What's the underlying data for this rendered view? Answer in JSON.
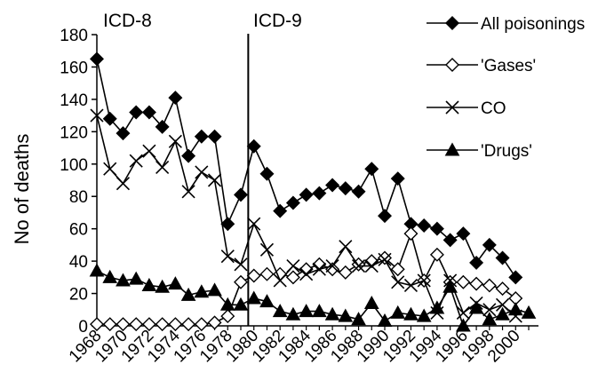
{
  "chart_data": {
    "type": "line",
    "title": "",
    "xlabel": "",
    "ylabel": "No of deaths",
    "ylim": [
      0,
      180
    ],
    "yticks": [
      0,
      20,
      40,
      60,
      80,
      100,
      120,
      140,
      160,
      180
    ],
    "xlim": [
      1968,
      2001
    ],
    "xtick_labels": [
      "1968",
      "1970",
      "1972",
      "1974",
      "1976",
      "1978",
      "1980",
      "1982",
      "1984",
      "1986",
      "1988",
      "1990",
      "1992",
      "1994",
      "1996",
      "1998",
      "2000"
    ],
    "x": [
      1968,
      1969,
      1970,
      1971,
      1972,
      1973,
      1974,
      1975,
      1976,
      1977,
      1978,
      1979,
      1980,
      1981,
      1982,
      1983,
      1984,
      1985,
      1986,
      1987,
      1988,
      1989,
      1990,
      1991,
      1992,
      1993,
      1994,
      1995,
      1996,
      1997,
      1998,
      1999,
      2000,
      2001
    ],
    "grid": false,
    "legend_position": "top-right",
    "annotations": [
      {
        "text": "ICD-8",
        "x": 1968
      },
      {
        "text": "ICD-9",
        "x": 1980
      }
    ],
    "divider_x": 1979.5,
    "series": [
      {
        "name": "All poisonings",
        "marker": "diamond-filled",
        "values": [
          165,
          128,
          119,
          132,
          132,
          123,
          141,
          105,
          117,
          117,
          63,
          81,
          111,
          94,
          71,
          76,
          81,
          82,
          87,
          85,
          83,
          97,
          68,
          91,
          63,
          62,
          60,
          53,
          57,
          39,
          50,
          42,
          30,
          null
        ]
      },
      {
        "name": "'Gases'",
        "marker": "diamond-open",
        "values": [
          1,
          1,
          1,
          1,
          1,
          1,
          1,
          1,
          1,
          2,
          6,
          27,
          31,
          32,
          32,
          30,
          35,
          38,
          35,
          33,
          38,
          40,
          42,
          35,
          57,
          28,
          44,
          27,
          27,
          26,
          25,
          23,
          17,
          null
        ]
      },
      {
        "name": "CO",
        "marker": "cross",
        "values": [
          130,
          97,
          88,
          102,
          108,
          98,
          114,
          83,
          95,
          90,
          43,
          38,
          63,
          47,
          28,
          37,
          32,
          35,
          37,
          49,
          37,
          37,
          41,
          27,
          25,
          28,
          8,
          28,
          8,
          14,
          10,
          13,
          6,
          null
        ]
      },
      {
        "name": "'Drugs'",
        "marker": "triangle-filled",
        "values": [
          34,
          30,
          28,
          29,
          25,
          24,
          26,
          19,
          21,
          22,
          13,
          13,
          17,
          15,
          9,
          7,
          9,
          9,
          7,
          6,
          4,
          14,
          3,
          8,
          7,
          6,
          11,
          24,
          0,
          11,
          4,
          7,
          10,
          8
        ]
      }
    ]
  }
}
